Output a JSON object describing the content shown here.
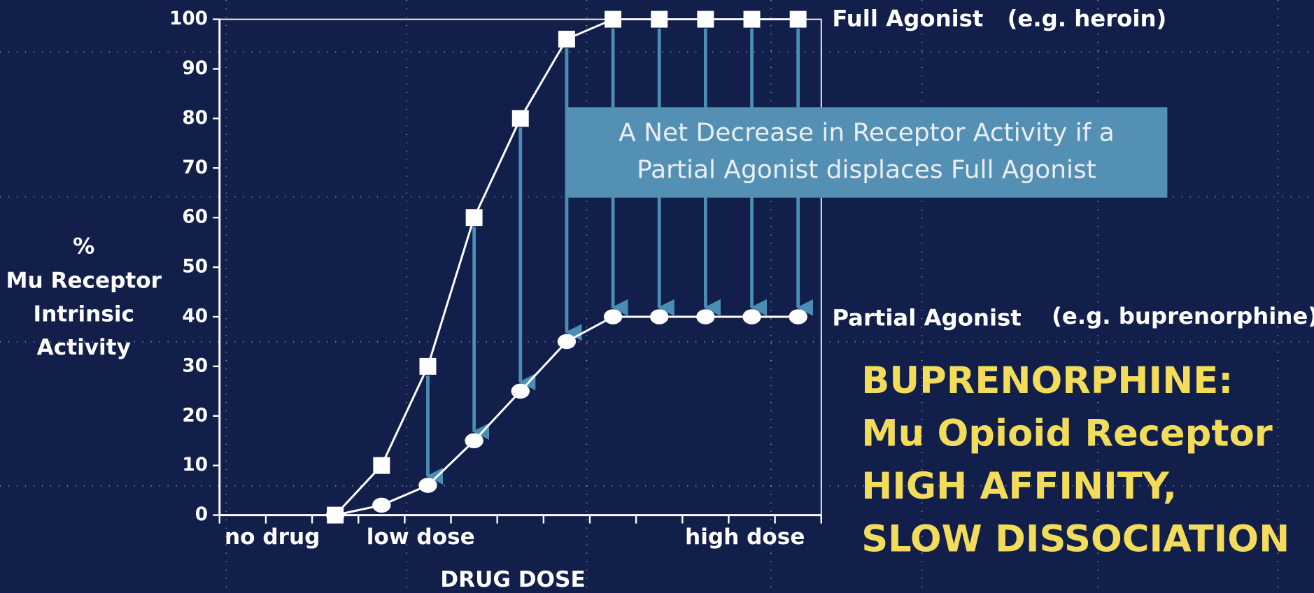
{
  "chart_data": {
    "type": "line",
    "ylabel": [
      "%",
      "Mu Receptor",
      "Intrinsic",
      "Activity"
    ],
    "xlabel": "DRUG DOSE",
    "x": [
      2.5,
      3.5,
      4.5,
      5.5,
      6.5,
      7.5,
      8.5,
      9.5,
      10.5,
      11.5,
      12.5
    ],
    "xlim": [
      0,
      13
    ],
    "xticks": [
      0,
      1,
      2,
      3,
      4,
      5,
      6,
      7,
      8,
      9,
      10,
      11,
      12,
      13
    ],
    "x_region_labels": [
      "no drug",
      "low dose",
      "high dose"
    ],
    "ylim": [
      0,
      100
    ],
    "yticks": [
      0,
      10,
      20,
      30,
      40,
      50,
      60,
      70,
      80,
      90,
      100
    ],
    "series": [
      {
        "name": "Full Agonist",
        "note": "(e.g. heroin)",
        "color": "#ffffff",
        "marker": "square",
        "values": [
          0,
          10,
          30,
          60,
          80,
          96,
          100,
          100,
          100,
          100,
          100
        ]
      },
      {
        "name": "Partial Agonist",
        "note": "(e.g. buprenorphine)",
        "color": "#ffffff",
        "marker": "circle",
        "values": [
          0,
          2,
          6,
          15,
          25,
          35,
          40,
          40,
          40,
          40,
          40
        ]
      }
    ],
    "arrow_color": "#4a8db5",
    "callout": [
      "A Net Decrease in Receptor Activity if a",
      "Partial Agonist displaces Full Agonist"
    ],
    "headline": [
      "BUPRENORPHINE:",
      "Mu Opioid Receptor",
      "HIGH AFFINITY,",
      "SLOW DISSOCIATION"
    ]
  }
}
